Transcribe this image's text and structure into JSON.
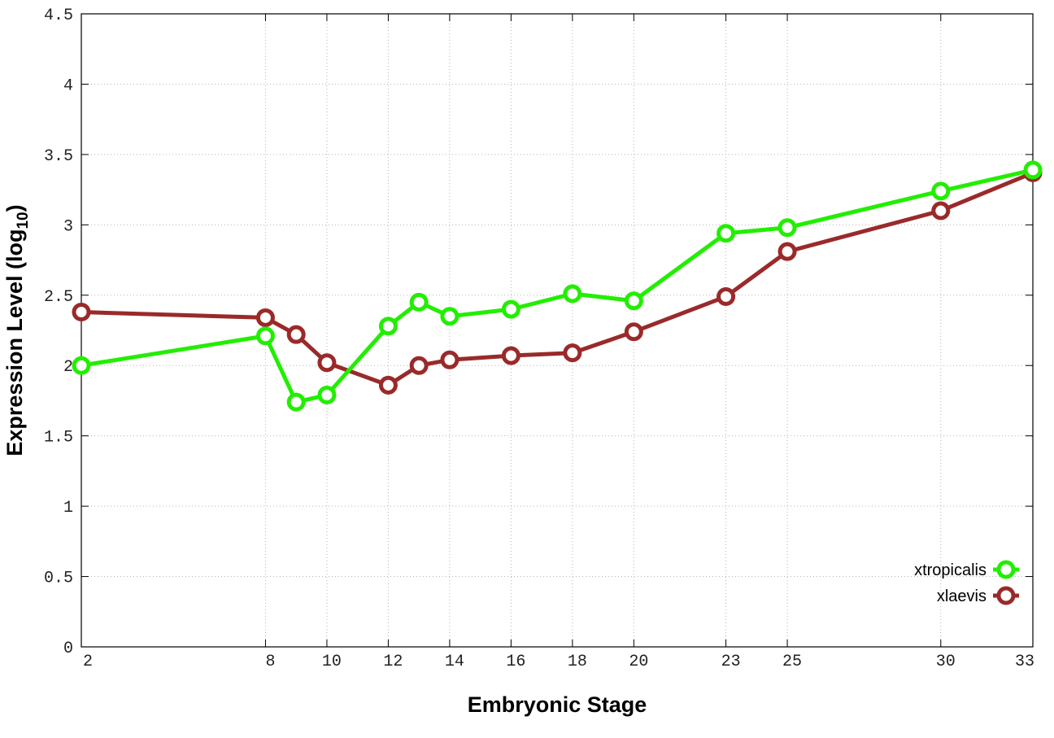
{
  "chart_data": {
    "type": "line",
    "xlabel": "Embryonic Stage",
    "ylabel": "Expression Level (log",
    "ylabel_sub": "10",
    "ylabel_close": ")",
    "x": [
      2,
      8,
      9,
      10,
      12,
      13,
      14,
      16,
      18,
      20,
      23,
      25,
      30,
      33
    ],
    "x_ticks": [
      2,
      8,
      10,
      12,
      14,
      16,
      18,
      20,
      23,
      25,
      30,
      33
    ],
    "x_tick_labels": [
      "2",
      "8",
      "10",
      "12",
      "14",
      "16",
      "18",
      "20",
      "23",
      "25",
      "30",
      "33"
    ],
    "xlim": [
      2,
      33
    ],
    "y_ticks": [
      0,
      0.5,
      1,
      1.5,
      2,
      2.5,
      3,
      3.5,
      4,
      4.5
    ],
    "y_tick_labels": [
      "0",
      "0.5",
      "1",
      "1.5",
      "2",
      "2.5",
      "3",
      "3.5",
      "4",
      "4.5"
    ],
    "ylim": [
      0,
      4.5
    ],
    "grid": true,
    "legend_position": "bottom-right",
    "series": [
      {
        "name": "xtropicalis",
        "color": "#22ee00",
        "values": [
          2.0,
          2.21,
          1.74,
          1.79,
          2.28,
          2.45,
          2.35,
          2.4,
          2.51,
          2.46,
          2.94,
          2.98,
          3.24,
          3.39
        ]
      },
      {
        "name": "xlaevis",
        "color": "#9a2a2a",
        "values": [
          2.38,
          2.34,
          2.22,
          2.02,
          1.86,
          2.0,
          2.04,
          2.07,
          2.09,
          2.24,
          2.49,
          2.81,
          3.1,
          3.37
        ]
      }
    ]
  }
}
